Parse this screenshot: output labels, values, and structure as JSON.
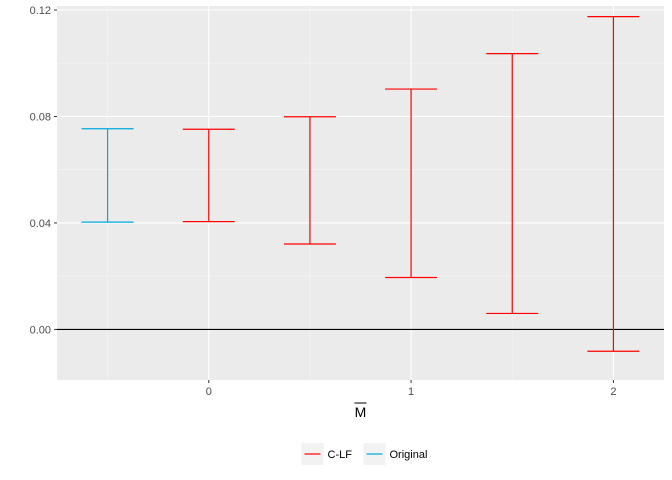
{
  "chart_data": {
    "type": "errorbar",
    "title": "",
    "xlabel": "M",
    "xlabel_overline": true,
    "ylabel": "",
    "xlim": [
      -0.5,
      2.0
    ],
    "ylim": [
      -0.019,
      0.1215
    ],
    "x_ticks": [
      0,
      1,
      2
    ],
    "x_tick_labels": [
      "0",
      "1",
      "2"
    ],
    "y_ticks": [
      0.0,
      0.04,
      0.08,
      0.12
    ],
    "y_tick_labels": [
      "0.00",
      "0.04",
      "0.08",
      "0.12"
    ],
    "hline": 0,
    "grid": true,
    "background": "#ebebeb",
    "legend_position": "bottom",
    "series": [
      {
        "name": "C-LF",
        "color": "#f8766d",
        "stroke": "#ff0000",
        "points": [
          {
            "x": 0.0,
            "lower": 0.0405,
            "upper": 0.0752
          },
          {
            "x": 0.5,
            "lower": 0.0321,
            "upper": 0.0799
          },
          {
            "x": 1.0,
            "lower": 0.0195,
            "upper": 0.0903
          },
          {
            "x": 1.5,
            "lower": 0.006,
            "upper": 0.1036
          },
          {
            "x": 2.0,
            "lower": -0.0082,
            "upper": 0.1175
          }
        ]
      },
      {
        "name": "Original",
        "color": "#00a9e0",
        "stroke": "#00a9e0",
        "points": [
          {
            "x": -0.5,
            "lower": 0.0403,
            "upper": 0.0754
          }
        ]
      }
    ]
  }
}
